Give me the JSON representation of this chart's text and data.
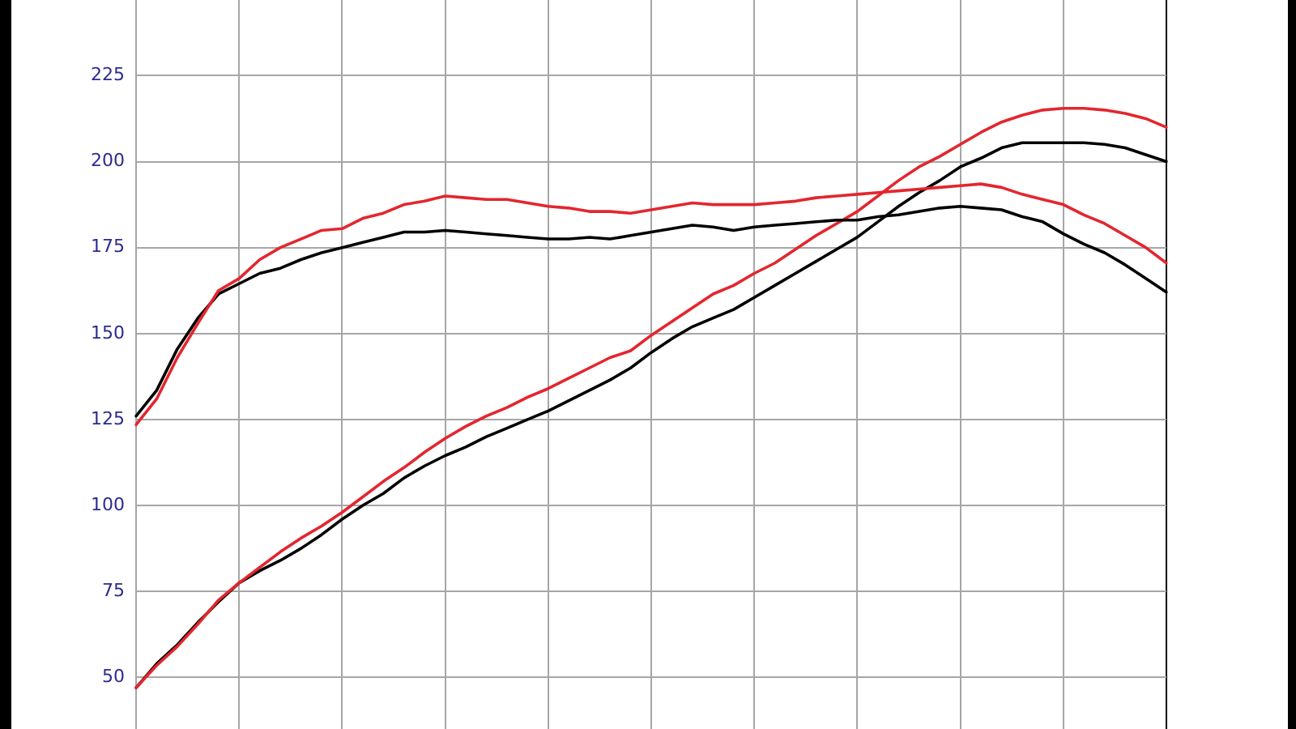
{
  "chart_data": {
    "type": "line",
    "categories": [
      null,
      null,
      null,
      null,
      null,
      null,
      null,
      null,
      null,
      null,
      null,
      null,
      null,
      null,
      null,
      null,
      null,
      null,
      null,
      null,
      null,
      null,
      null,
      null,
      null,
      null,
      null,
      null,
      null,
      null,
      null,
      null,
      null,
      null,
      null,
      null,
      null,
      null,
      null,
      null,
      null,
      null,
      null,
      null,
      null,
      null,
      null,
      null,
      null,
      null,
      null
    ],
    "series": [
      {
        "color": "#e3262e",
        "values": [
          123.5,
          131,
          143,
          153,
          162.5,
          166,
          171.5,
          175,
          177.5,
          180,
          180.5,
          183.5,
          185,
          187.5,
          188.5,
          190,
          189.5,
          189,
          189,
          188,
          187,
          186.5,
          185.5,
          185.5,
          185,
          186,
          187,
          188,
          187.5,
          187.5,
          187.5,
          188,
          188.5,
          189.5,
          190,
          190.5,
          191,
          191.5,
          192,
          192.5,
          193,
          193.5,
          192.5,
          190.5,
          189,
          187.5,
          184.5,
          182,
          178.5,
          175,
          170.5
        ]
      },
      {
        "color": "#000000",
        "values": [
          126,
          133.5,
          145.5,
          154.5,
          161.5,
          164.5,
          167.5,
          169,
          171.5,
          173.5,
          175,
          176.5,
          178,
          179.5,
          179.5,
          180,
          179.5,
          179,
          178.5,
          178,
          177.5,
          177.5,
          178,
          177.5,
          178.5,
          179.5,
          180.5,
          181.5,
          181,
          180,
          181,
          181.5,
          182,
          182.5,
          183,
          183,
          184,
          184.5,
          185.5,
          186.5,
          187,
          186.5,
          186,
          184,
          182.5,
          179,
          176,
          173.5,
          170,
          166,
          162
        ]
      },
      {
        "color": "#e3262e",
        "values": [
          47,
          53.5,
          59,
          65.5,
          72.5,
          77.5,
          82,
          86.5,
          90.5,
          94,
          98,
          102.5,
          107,
          111,
          115.5,
          119.5,
          123,
          126,
          128.5,
          131.5,
          134,
          137,
          140,
          143,
          145,
          149.5,
          153.5,
          157.5,
          161.5,
          164,
          167.5,
          170.5,
          174.5,
          178.5,
          182,
          185.5,
          190,
          194.5,
          198.5,
          201.5,
          205,
          208.5,
          211.5,
          213.5,
          215,
          215.5,
          215.5,
          215,
          214,
          212.5,
          210
        ]
      },
      {
        "color": "#000000",
        "values": [
          47,
          54,
          59.5,
          66,
          72,
          77.5,
          81,
          84,
          87.5,
          91.5,
          96,
          100,
          103.5,
          108,
          111.5,
          114.5,
          117,
          120,
          122.5,
          125,
          127.5,
          130.5,
          133.5,
          136.5,
          140,
          144.5,
          148.5,
          152,
          154.5,
          157,
          160.5,
          164,
          167.5,
          171,
          174.5,
          178,
          182.5,
          187,
          191,
          194.5,
          198.5,
          201,
          204,
          205.5,
          205.5,
          205.5,
          205.5,
          205,
          204,
          202,
          200
        ]
      }
    ],
    "ylim": [
      35,
      247
    ],
    "yticks": [
      50,
      75,
      100,
      125,
      150,
      175,
      200,
      225
    ],
    "grid": true,
    "legend": false,
    "tick_labels": "y"
  }
}
